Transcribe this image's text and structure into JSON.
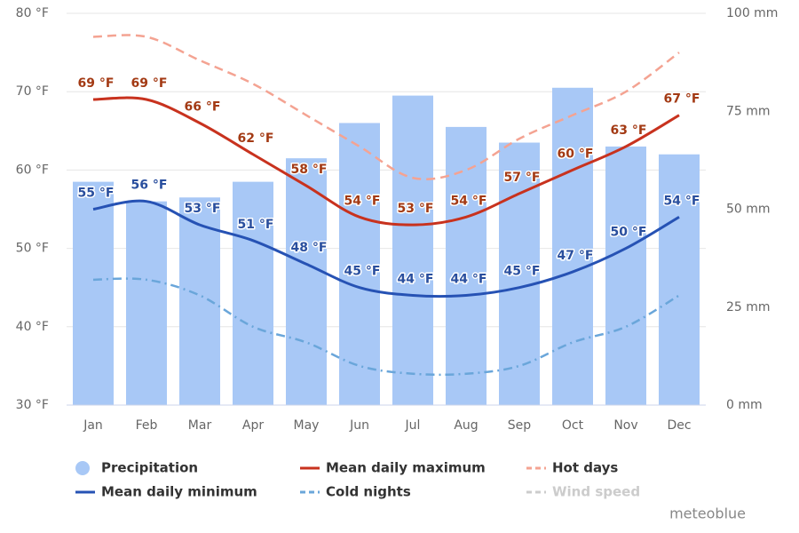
{
  "chart_data": {
    "type": "combo",
    "categories": [
      "Jan",
      "Feb",
      "Mar",
      "Apr",
      "May",
      "Jun",
      "Jul",
      "Aug",
      "Sep",
      "Oct",
      "Nov",
      "Dec"
    ],
    "ylim": [
      30,
      80
    ],
    "yticks": [
      {
        "value": 30,
        "label": "30 °F"
      },
      {
        "value": 40,
        "label": "40 °F"
      },
      {
        "value": 50,
        "label": "50 °F"
      },
      {
        "value": 60,
        "label": "60 °F"
      },
      {
        "value": 70,
        "label": "70 °F"
      },
      {
        "value": 80,
        "label": "80 °F"
      }
    ],
    "y2lim": [
      0,
      100
    ],
    "y2ticks": [
      {
        "value": 0,
        "label": "0 mm"
      },
      {
        "value": 25,
        "label": "25 mm"
      },
      {
        "value": 50,
        "label": "50 mm"
      },
      {
        "value": 75,
        "label": "75 mm"
      },
      {
        "value": 100,
        "label": "100 mm"
      }
    ],
    "grid": true,
    "legend": "bottom",
    "series": [
      {
        "name": "Precipitation",
        "type": "bar",
        "axis": "y2",
        "color": "#a8c8f6",
        "values": [
          57,
          52,
          53,
          57,
          63,
          72,
          79,
          71,
          67,
          81,
          66,
          64
        ]
      },
      {
        "name": "Mean daily maximum",
        "type": "line",
        "color": "#c8321e",
        "dash": "solid",
        "label_color": "#a33a14",
        "values": [
          69,
          69,
          66,
          62,
          58,
          54,
          53,
          54,
          57,
          60,
          63,
          67
        ],
        "value_labels": [
          "69 °F",
          "69 °F",
          "66 °F",
          "62 °F",
          "58 °F",
          "54 °F",
          "53 °F",
          "54 °F",
          "57 °F",
          "60 °F",
          "63 °F",
          "67 °F"
        ]
      },
      {
        "name": "Hot days",
        "type": "line",
        "color": "#f4a392",
        "dash": "dash",
        "values": [
          77,
          77,
          74,
          71,
          67,
          63,
          59,
          60,
          64,
          67,
          70,
          75
        ]
      },
      {
        "name": "Mean daily minimum",
        "type": "line",
        "color": "#2652b4",
        "dash": "solid",
        "label_color": "#2a4f9e",
        "values": [
          55,
          56,
          53,
          51,
          48,
          45,
          44,
          44,
          45,
          47,
          50,
          54
        ],
        "value_labels": [
          "55 °F",
          "56 °F",
          "53 °F",
          "51 °F",
          "48 °F",
          "45 °F",
          "44 °F",
          "44 °F",
          "45 °F",
          "47 °F",
          "50 °F",
          "54 °F"
        ]
      },
      {
        "name": "Cold nights",
        "type": "line",
        "color": "#6aa6da",
        "dash": "dashdot",
        "values": [
          46,
          46,
          44,
          40,
          38,
          35,
          34,
          34,
          35,
          38,
          40,
          44
        ]
      },
      {
        "name": "Wind speed",
        "type": "line",
        "color": "#cccccc",
        "hidden": true
      }
    ],
    "credit": "meteoblue"
  }
}
